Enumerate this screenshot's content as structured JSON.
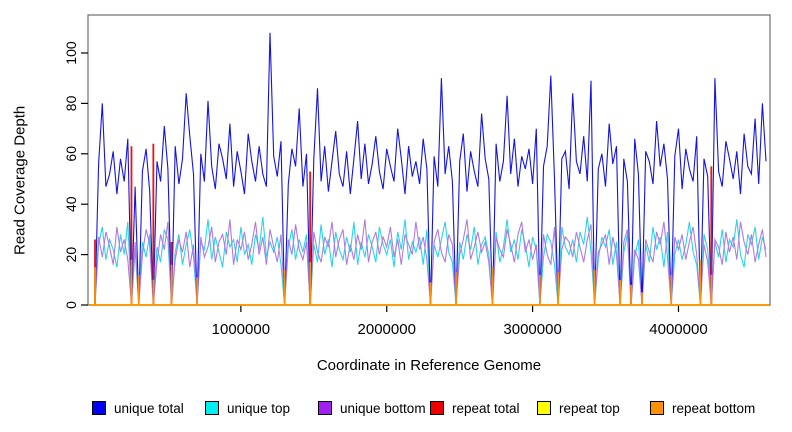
{
  "figure": {
    "xlabel": "Coordinate in Reference Genome",
    "ylabel": "Read Coverage Depth"
  },
  "legend": {
    "items": [
      {
        "label": "unique total",
        "color": "#0000ee"
      },
      {
        "label": "unique top",
        "color": "#00eeee"
      },
      {
        "label": "unique bottom",
        "color": "#a020f0"
      },
      {
        "label": "repeat total",
        "color": "#ee0000"
      },
      {
        "label": "repeat top",
        "color": "#ffff00"
      },
      {
        "label": "repeat bottom",
        "color": "#ff9000"
      }
    ]
  },
  "chart_data": {
    "type": "line",
    "title": "",
    "xlabel": "Coordinate in Reference Genome",
    "ylabel": "Read Coverage Depth",
    "xlim": [
      0,
      4600000
    ],
    "ylim": [
      0,
      115
    ],
    "grid": false,
    "legend_position": "bottom",
    "x_ticks": [
      1000000,
      2000000,
      3000000,
      4000000
    ],
    "x_tick_labels": [
      "1000000",
      "2000000",
      "3000000",
      "4000000"
    ],
    "y_ticks": [
      0,
      20,
      40,
      60,
      80,
      100
    ],
    "y_tick_labels": [
      "0",
      "20",
      "40",
      "60",
      "80",
      "100"
    ],
    "x_step": 25000,
    "series": [
      {
        "name": "unique total",
        "color": "#1414e0",
        "kind": "dense",
        "values": [
          0,
          56,
          80,
          47,
          52,
          61,
          44,
          58,
          49,
          66,
          0,
          47,
          0,
          53,
          62,
          45,
          0,
          57,
          49,
          71,
          54,
          0,
          63,
          48,
          58,
          84,
          67,
          52,
          0,
          60,
          49,
          81,
          55,
          46,
          64,
          58,
          50,
          72,
          47,
          61,
          53,
          44,
          68,
          57,
          49,
          63,
          52,
          47,
          108,
          59,
          51,
          65,
          0,
          48,
          62,
          55,
          78,
          47,
          60,
          0,
          58,
          86,
          49,
          63,
          45,
          57,
          69,
          52,
          47,
          61,
          44,
          58,
          73,
          50,
          64,
          48,
          56,
          67,
          53,
          46,
          62,
          55,
          49,
          70,
          58,
          44,
          63,
          51,
          57,
          48,
          66,
          54,
          0,
          59,
          47,
          90,
          52,
          63,
          49,
          0,
          57,
          68,
          45,
          61,
          53,
          47,
          76,
          58,
          50,
          0,
          64,
          49,
          57,
          83,
          52,
          66,
          47,
          59,
          54,
          62,
          48,
          70,
          0,
          55,
          63,
          91,
          50,
          0,
          58,
          61,
          46,
          84,
          57,
          52,
          67,
          49,
          89,
          0,
          54,
          60,
          47,
          72,
          56,
          63,
          0,
          58,
          49,
          0,
          66,
          52,
          0,
          61,
          57,
          48,
          73,
          55,
          64,
          50,
          0,
          59,
          70,
          46,
          62,
          54,
          49,
          67,
          0,
          58,
          51,
          0,
          90,
          53,
          47,
          65,
          58,
          50,
          61,
          44,
          68,
          55,
          52,
          74,
          48,
          80,
          57
        ]
      },
      {
        "name": "unique top",
        "color": "#2ad4e8",
        "kind": "dense",
        "values": [
          0,
          24,
          31,
          18,
          26,
          22,
          15,
          28,
          20,
          33,
          0,
          22,
          0,
          25,
          19,
          28,
          0,
          23,
          17,
          30,
          26,
          0,
          21,
          28,
          16,
          24,
          30,
          19,
          0,
          25,
          22,
          34,
          18,
          27,
          21,
          15,
          29,
          23,
          26,
          17,
          31,
          20,
          24,
          16,
          28,
          22,
          35,
          19,
          25,
          21,
          27,
          16,
          0,
          23,
          30,
          18,
          26,
          21,
          28,
          0,
          24,
          17,
          32,
          20,
          26,
          15,
          29,
          22,
          18,
          27,
          21,
          33,
          16,
          25,
          19,
          28,
          23,
          17,
          31,
          24,
          20,
          26,
          15,
          29,
          22,
          34,
          18,
          25,
          21,
          27,
          16,
          30,
          0,
          24,
          19,
          26,
          33,
          21,
          17,
          0,
          25,
          18,
          28,
          22,
          31,
          16,
          24,
          27,
          20,
          0,
          29,
          17,
          23,
          34,
          21,
          26,
          18,
          30,
          24,
          15,
          27,
          22,
          0,
          19,
          28,
          25,
          16,
          0,
          31,
          23,
          20,
          26,
          17,
          29,
          24,
          35,
          21,
          0,
          18,
          27,
          23,
          30,
          16,
          25,
          0,
          21,
          28,
          0,
          19,
          26,
          0,
          24,
          17,
          31,
          22,
          27,
          15,
          29,
          0,
          20,
          26,
          18,
          24,
          33,
          21,
          16,
          0,
          28,
          22,
          0,
          25,
          19,
          30,
          17,
          26,
          23,
          34,
          20,
          15,
          28,
          24,
          31,
          18,
          27,
          22
        ]
      },
      {
        "name": "unique bottom",
        "color": "#b07ae0",
        "kind": "dense",
        "values": [
          0,
          27,
          19,
          29,
          23,
          16,
          31,
          21,
          26,
          18,
          0,
          25,
          0,
          20,
          30,
          24,
          0,
          17,
          28,
          22,
          33,
          0,
          18,
          26,
          21,
          29,
          15,
          24,
          0,
          27,
          19,
          23,
          31,
          17,
          25,
          28,
          20,
          34,
          16,
          26,
          22,
          29,
          18,
          24,
          33,
          20,
          27,
          16,
          30,
          23,
          17,
          28,
          0,
          26,
          20,
          32,
          22,
          18,
          25,
          0,
          29,
          21,
          17,
          27,
          23,
          33,
          19,
          26,
          30,
          16,
          24,
          18,
          28,
          22,
          34,
          17,
          25,
          29,
          20,
          27,
          23,
          31,
          19,
          26,
          16,
          28,
          24,
          20,
          33,
          22,
          27,
          18,
          0,
          25,
          30,
          21,
          17,
          28,
          24,
          0,
          20,
          26,
          34,
          18,
          23,
          29,
          21,
          25,
          17,
          0,
          27,
          22,
          19,
          30,
          24,
          17,
          28,
          33,
          21,
          26,
          18,
          24,
          0,
          28,
          20,
          16,
          31,
          0,
          22,
          27,
          25,
          19,
          29,
          23,
          17,
          26,
          32,
          0,
          21,
          24,
          28,
          16,
          27,
          20,
          0,
          25,
          30,
          0,
          22,
          18,
          0,
          26,
          21,
          17,
          29,
          24,
          33,
          19,
          0,
          27,
          22,
          28,
          18,
          25,
          31,
          20,
          0,
          24,
          17,
          0,
          26,
          23,
          16,
          29,
          21,
          27,
          18,
          33,
          25,
          20,
          28,
          17,
          24,
          30,
          19
        ]
      },
      {
        "name": "repeat total",
        "color": "#ee1111",
        "kind": "sparse",
        "baseline": 0,
        "spikes": [
          {
            "x": 0,
            "v": 26
          },
          {
            "x": 250000,
            "v": 63
          },
          {
            "x": 400000,
            "v": 64
          },
          {
            "x": 525000,
            "v": 25
          },
          {
            "x": 1475000,
            "v": 53
          },
          {
            "x": 2300000,
            "v": 6
          },
          {
            "x": 3675000,
            "v": 8
          },
          {
            "x": 4225000,
            "v": 55
          }
        ]
      },
      {
        "name": "repeat top",
        "color": "#ffff00",
        "kind": "sparse",
        "baseline": 0,
        "spikes": []
      },
      {
        "name": "repeat bottom",
        "color": "#ff9000",
        "kind": "sparse",
        "baseline": 0,
        "spikes": [
          {
            "x": 0,
            "v": 15
          },
          {
            "x": 250000,
            "v": 18
          },
          {
            "x": 300000,
            "v": 12
          },
          {
            "x": 400000,
            "v": 10
          },
          {
            "x": 525000,
            "v": 16
          },
          {
            "x": 700000,
            "v": 11
          },
          {
            "x": 1300000,
            "v": 14
          },
          {
            "x": 1475000,
            "v": 17
          },
          {
            "x": 2300000,
            "v": 9
          },
          {
            "x": 2475000,
            "v": 13
          },
          {
            "x": 2725000,
            "v": 15
          },
          {
            "x": 3050000,
            "v": 12
          },
          {
            "x": 3175000,
            "v": 13
          },
          {
            "x": 3425000,
            "v": 14
          },
          {
            "x": 3600000,
            "v": 10
          },
          {
            "x": 3675000,
            "v": 8
          },
          {
            "x": 3750000,
            "v": 5
          },
          {
            "x": 3950000,
            "v": 12
          },
          {
            "x": 4150000,
            "v": 18
          },
          {
            "x": 4225000,
            "v": 12
          }
        ]
      }
    ]
  }
}
